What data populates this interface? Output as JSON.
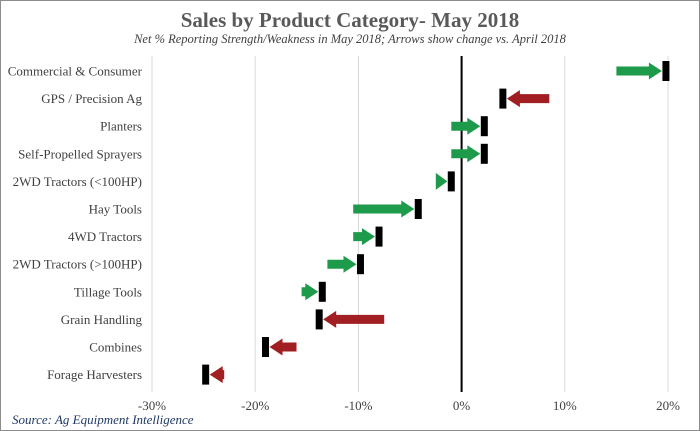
{
  "chart_data": {
    "type": "bar",
    "title": "Sales by Product Category- May 2018",
    "subtitle": "Net % Reporting Strength/Weakness in May 2018; Arrows show change vs. April 2018",
    "source": "Source: Ag Equipment Intelligence",
    "xlim": [
      -30,
      20
    ],
    "xticks": [
      -30,
      -20,
      -10,
      0,
      10,
      20
    ],
    "xtick_labels": [
      "-30%",
      "-20%",
      "-10%",
      "0%",
      "10%",
      "20%"
    ],
    "grid": true,
    "colors": {
      "increase": "#1e9b4a",
      "decrease": "#a11e22",
      "marker": "#000000",
      "grid": "#d9d9d9"
    },
    "series": [
      {
        "name": "April 2018",
        "values": [
          15,
          8.5,
          -1,
          -1,
          -2.5,
          -10.5,
          -10.5,
          -13,
          -15.5,
          -7.5,
          -16,
          -23
        ]
      },
      {
        "name": "May 2018",
        "values": [
          19.8,
          4,
          2.2,
          2.2,
          -1,
          -4.2,
          -8,
          -9.8,
          -13.5,
          -13.8,
          -19,
          -24.8
        ]
      }
    ],
    "categories": [
      "Commercial & Consumer",
      "GPS / Precision Ag",
      "Planters",
      "Self-Propelled Sprayers",
      "2WD Tractors (<100HP)",
      "Hay Tools",
      "4WD Tractors",
      "2WD Tractors (>100HP)",
      "Tillage Tools",
      "Grain Handling",
      "Combines",
      "Forage Harvesters"
    ]
  }
}
